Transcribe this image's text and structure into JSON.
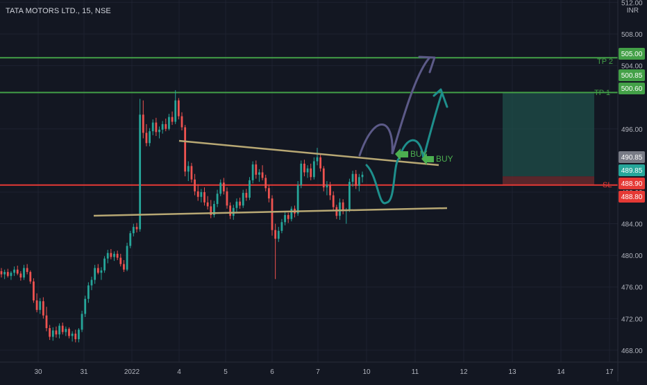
{
  "symbol_title": "TATA MOTORS LTD., 15, NSE",
  "currency": "INR",
  "colors": {
    "background": "#131722",
    "grid": "#1e2230",
    "up": "#26a69a",
    "down": "#ef5350",
    "take_profit": "#43a047",
    "stop_loss": "#e53935",
    "trendline": "#b8a874",
    "curve_dark": "#5c5a88",
    "curve_teal": "#1e8f8c",
    "buy_arrow": "#4caf50",
    "axis_text": "#b2b5be"
  },
  "annotations": {
    "tp2": "TP 2",
    "tp1": "TP 1",
    "sl": "SL",
    "buy1": "BUY",
    "buy2": "BUY"
  },
  "chart_data": {
    "type": "candlestick",
    "symbol": "TATA MOTORS LTD.",
    "interval": "15",
    "exchange": "NSE",
    "y_axis": {
      "ticks": [
        512.0,
        508.0,
        504.0,
        496.0,
        488.0,
        484.0,
        480.0,
        476.0,
        472.0,
        468.0
      ],
      "range": [
        466.5,
        512.3
      ]
    },
    "x_axis": {
      "ticks": [
        "30",
        "31",
        "2022",
        "4",
        "5",
        "6",
        "7",
        "10",
        "11",
        "12",
        "13",
        "14",
        "17"
      ]
    },
    "price_levels": [
      {
        "label": "TP 2",
        "price": 505.0,
        "tag": "505.00"
      },
      {
        "label": "TP 1",
        "price": 500.6,
        "tag": "500.60"
      },
      {
        "label": "SL",
        "price": 488.9,
        "tag": "488.90"
      }
    ],
    "price_tags": [
      {
        "text": "505.00",
        "price": 505.0,
        "color": "#43a047"
      },
      {
        "text": "500.85",
        "price": 500.85,
        "color": "#43a047"
      },
      {
        "text": "500.60",
        "price": 500.6,
        "color": "#43a047"
      },
      {
        "text": "490.85",
        "price": 490.85,
        "color": "#787b86"
      },
      {
        "text": "489.85",
        "price": 489.85,
        "color": "#26a69a"
      },
      {
        "text": "488.90",
        "price": 488.9,
        "color": "#e53935"
      },
      {
        "text": "488.80",
        "price": 488.8,
        "color": "#e53935"
      }
    ],
    "candles": [
      [
        478.0,
        478.4,
        477.2,
        477.6
      ],
      [
        477.6,
        478.2,
        477.0,
        477.9
      ],
      [
        477.9,
        478.3,
        477.2,
        477.4
      ],
      [
        477.4,
        478.0,
        476.9,
        477.8
      ],
      [
        477.8,
        478.6,
        477.4,
        478.2
      ],
      [
        478.2,
        478.7,
        477.5,
        477.7
      ],
      [
        477.7,
        478.0,
        476.8,
        477.2
      ],
      [
        477.2,
        478.8,
        476.9,
        478.4
      ],
      [
        478.4,
        478.9,
        477.6,
        477.9
      ],
      [
        477.9,
        478.1,
        476.4,
        476.7
      ],
      [
        476.7,
        477.1,
        474.0,
        474.3
      ],
      [
        474.3,
        475.2,
        472.8,
        473.1
      ],
      [
        473.1,
        474.6,
        472.6,
        474.2
      ],
      [
        474.2,
        474.7,
        472.0,
        472.4
      ],
      [
        472.4,
        473.5,
        470.4,
        470.8
      ],
      [
        470.8,
        471.2,
        469.3,
        469.7
      ],
      [
        469.7,
        470.9,
        469.2,
        470.5
      ],
      [
        470.5,
        471.0,
        469.6,
        470.0
      ],
      [
        470.0,
        471.4,
        469.5,
        471.1
      ],
      [
        471.1,
        471.5,
        470.0,
        470.3
      ],
      [
        470.3,
        471.0,
        469.8,
        470.7
      ],
      [
        470.7,
        470.9,
        469.5,
        469.8
      ],
      [
        469.8,
        470.4,
        469.1,
        470.1
      ],
      [
        470.1,
        470.6,
        469.0,
        469.4
      ],
      [
        469.4,
        470.8,
        469.0,
        470.6
      ],
      [
        470.6,
        473.0,
        470.3,
        472.6
      ],
      [
        472.6,
        474.9,
        472.2,
        474.5
      ],
      [
        474.5,
        476.6,
        474.0,
        476.2
      ],
      [
        476.2,
        477.3,
        475.6,
        476.9
      ],
      [
        476.9,
        478.8,
        476.4,
        478.4
      ],
      [
        478.4,
        478.9,
        477.6,
        477.8
      ],
      [
        477.8,
        478.5,
        476.9,
        478.1
      ],
      [
        478.1,
        479.9,
        477.8,
        479.6
      ],
      [
        479.6,
        480.7,
        479.0,
        480.3
      ],
      [
        480.3,
        480.8,
        479.5,
        479.8
      ],
      [
        479.8,
        480.5,
        479.3,
        480.2
      ],
      [
        480.2,
        480.6,
        479.4,
        479.7
      ],
      [
        479.7,
        480.2,
        478.6,
        478.9
      ],
      [
        478.9,
        479.4,
        477.9,
        478.2
      ],
      [
        478.2,
        481.6,
        478.0,
        481.2
      ],
      [
        481.2,
        483.1,
        480.9,
        482.8
      ],
      [
        482.8,
        484.0,
        482.4,
        483.6
      ],
      [
        483.6,
        484.1,
        482.9,
        483.3
      ],
      [
        483.3,
        499.8,
        483.0,
        497.8
      ],
      [
        497.8,
        499.6,
        494.8,
        495.5
      ],
      [
        495.5,
        496.6,
        493.8,
        494.2
      ],
      [
        494.2,
        496.1,
        493.8,
        495.7
      ],
      [
        495.7,
        497.2,
        495.2,
        496.8
      ],
      [
        496.8,
        497.4,
        495.1,
        495.6
      ],
      [
        495.6,
        496.3,
        494.8,
        495.9
      ],
      [
        495.9,
        497.0,
        495.4,
        496.6
      ],
      [
        496.6,
        497.3,
        495.7,
        496.0
      ],
      [
        496.0,
        497.9,
        495.8,
        497.5
      ],
      [
        497.5,
        498.2,
        496.5,
        496.9
      ],
      [
        496.9,
        500.9,
        496.6,
        499.6
      ],
      [
        499.6,
        499.9,
        497.2,
        497.6
      ],
      [
        497.6,
        498.1,
        495.8,
        496.2
      ],
      [
        496.2,
        496.5,
        490.0,
        490.6
      ],
      [
        490.6,
        491.9,
        489.4,
        491.3
      ],
      [
        491.3,
        491.7,
        489.2,
        489.6
      ],
      [
        489.6,
        490.3,
        487.6,
        488.1
      ],
      [
        488.1,
        489.0,
        486.9,
        487.4
      ],
      [
        487.4,
        488.4,
        486.7,
        488.0
      ],
      [
        488.0,
        488.6,
        486.3,
        486.7
      ],
      [
        486.7,
        487.5,
        485.8,
        486.2
      ],
      [
        486.2,
        487.0,
        484.7,
        485.1
      ],
      [
        485.1,
        486.9,
        484.8,
        486.5
      ],
      [
        486.5,
        488.3,
        486.1,
        487.8
      ],
      [
        487.8,
        489.6,
        487.5,
        489.2
      ],
      [
        489.2,
        489.8,
        487.7,
        488.1
      ],
      [
        488.1,
        488.6,
        485.9,
        486.3
      ],
      [
        486.3,
        486.7,
        484.6,
        485.0
      ],
      [
        485.0,
        486.4,
        484.5,
        486.0
      ],
      [
        486.0,
        487.2,
        485.5,
        486.8
      ],
      [
        486.8,
        487.3,
        485.9,
        486.3
      ],
      [
        486.3,
        488.3,
        486.0,
        487.9
      ],
      [
        487.9,
        488.4,
        486.9,
        487.3
      ],
      [
        487.3,
        489.9,
        487.0,
        489.5
      ],
      [
        489.5,
        491.9,
        489.1,
        491.5
      ],
      [
        491.5,
        492.0,
        489.7,
        490.2
      ],
      [
        490.2,
        490.9,
        489.3,
        490.5
      ],
      [
        490.5,
        491.4,
        489.5,
        489.8
      ],
      [
        489.8,
        490.2,
        488.1,
        488.5
      ],
      [
        488.5,
        488.9,
        486.7,
        487.2
      ],
      [
        487.2,
        487.6,
        482.5,
        483.2
      ],
      [
        483.2,
        484.0,
        477.0,
        482.1
      ],
      [
        482.1,
        483.6,
        481.7,
        483.1
      ],
      [
        483.1,
        484.6,
        482.8,
        484.2
      ],
      [
        484.2,
        485.5,
        483.8,
        485.1
      ],
      [
        485.1,
        485.4,
        484.1,
        484.6
      ],
      [
        484.6,
        486.2,
        484.3,
        485.9
      ],
      [
        485.9,
        486.3,
        484.8,
        485.3
      ],
      [
        485.3,
        489.4,
        485.0,
        488.9
      ],
      [
        488.9,
        492.0,
        488.5,
        491.6
      ],
      [
        491.6,
        492.1,
        490.0,
        490.5
      ],
      [
        490.5,
        491.4,
        489.8,
        491.0
      ],
      [
        491.0,
        491.6,
        489.5,
        489.9
      ],
      [
        489.9,
        492.4,
        489.6,
        491.9
      ],
      [
        491.9,
        493.6,
        491.4,
        492.4
      ],
      [
        492.4,
        492.9,
        490.6,
        491.0
      ],
      [
        491.0,
        491.3,
        488.1,
        488.6
      ],
      [
        488.6,
        489.4,
        487.6,
        488.9
      ],
      [
        488.9,
        489.3,
        487.0,
        487.6
      ],
      [
        487.6,
        488.1,
        485.6,
        486.1
      ],
      [
        486.1,
        486.4,
        484.6,
        485.0
      ],
      [
        485.0,
        487.2,
        484.5,
        486.7
      ],
      [
        486.7,
        487.1,
        485.2,
        485.6
      ],
      [
        485.6,
        486.0,
        484.0,
        485.8
      ],
      [
        485.8,
        489.7,
        485.5,
        489.3
      ],
      [
        489.3,
        490.7,
        488.7,
        490.3
      ],
      [
        490.3,
        490.8,
        488.4,
        488.8
      ],
      [
        488.8,
        490.3,
        488.1,
        489.9
      ],
      [
        489.9,
        490.6,
        489.2,
        490.2
      ]
    ]
  }
}
